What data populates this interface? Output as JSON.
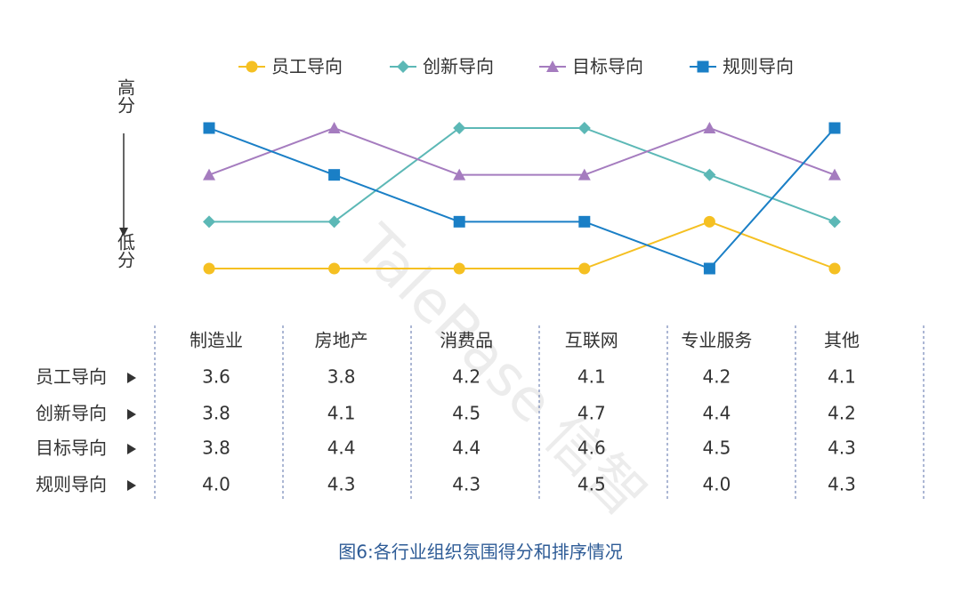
{
  "chart_data": {
    "type": "line",
    "categories": [
      "制造业",
      "房地产",
      "消费品",
      "互联网",
      "专业服务",
      "其他"
    ],
    "series": [
      {
        "name": "员工导向",
        "color": "#f5c022",
        "marker": "circle",
        "values": [
          4,
          4,
          4,
          4,
          3,
          4
        ]
      },
      {
        "name": "创新导向",
        "color": "#5cb8b6",
        "marker": "diamond",
        "values": [
          3,
          3,
          1,
          1,
          2,
          3
        ]
      },
      {
        "name": "目标导向",
        "color": "#a57cbf",
        "marker": "triangle",
        "values": [
          2,
          1,
          2,
          2,
          1,
          2
        ]
      },
      {
        "name": "规则导向",
        "color": "#1a7fc6",
        "marker": "square",
        "values": [
          1,
          2,
          3,
          3,
          4,
          1
        ]
      }
    ],
    "ylim": [
      4,
      1
    ],
    "y_top_label": "高分",
    "y_bottom_label": "低分",
    "table": {
      "rows": [
        {
          "label": "员工导向",
          "values": [
            "3.6",
            "3.8",
            "4.2",
            "4.1",
            "4.2",
            "4.1"
          ]
        },
        {
          "label": "创新导向",
          "values": [
            "3.8",
            "4.1",
            "4.5",
            "4.7",
            "4.4",
            "4.2"
          ]
        },
        {
          "label": "目标导向",
          "values": [
            "3.8",
            "4.4",
            "4.4",
            "4.6",
            "4.5",
            "4.3"
          ]
        },
        {
          "label": "规则导向",
          "values": [
            "4.0",
            "4.3",
            "4.3",
            "4.5",
            "4.0",
            "4.3"
          ]
        }
      ]
    },
    "caption": "图6:各行业组织氛围得分和排序情况",
    "watermark": "TaleBase 信智"
  }
}
